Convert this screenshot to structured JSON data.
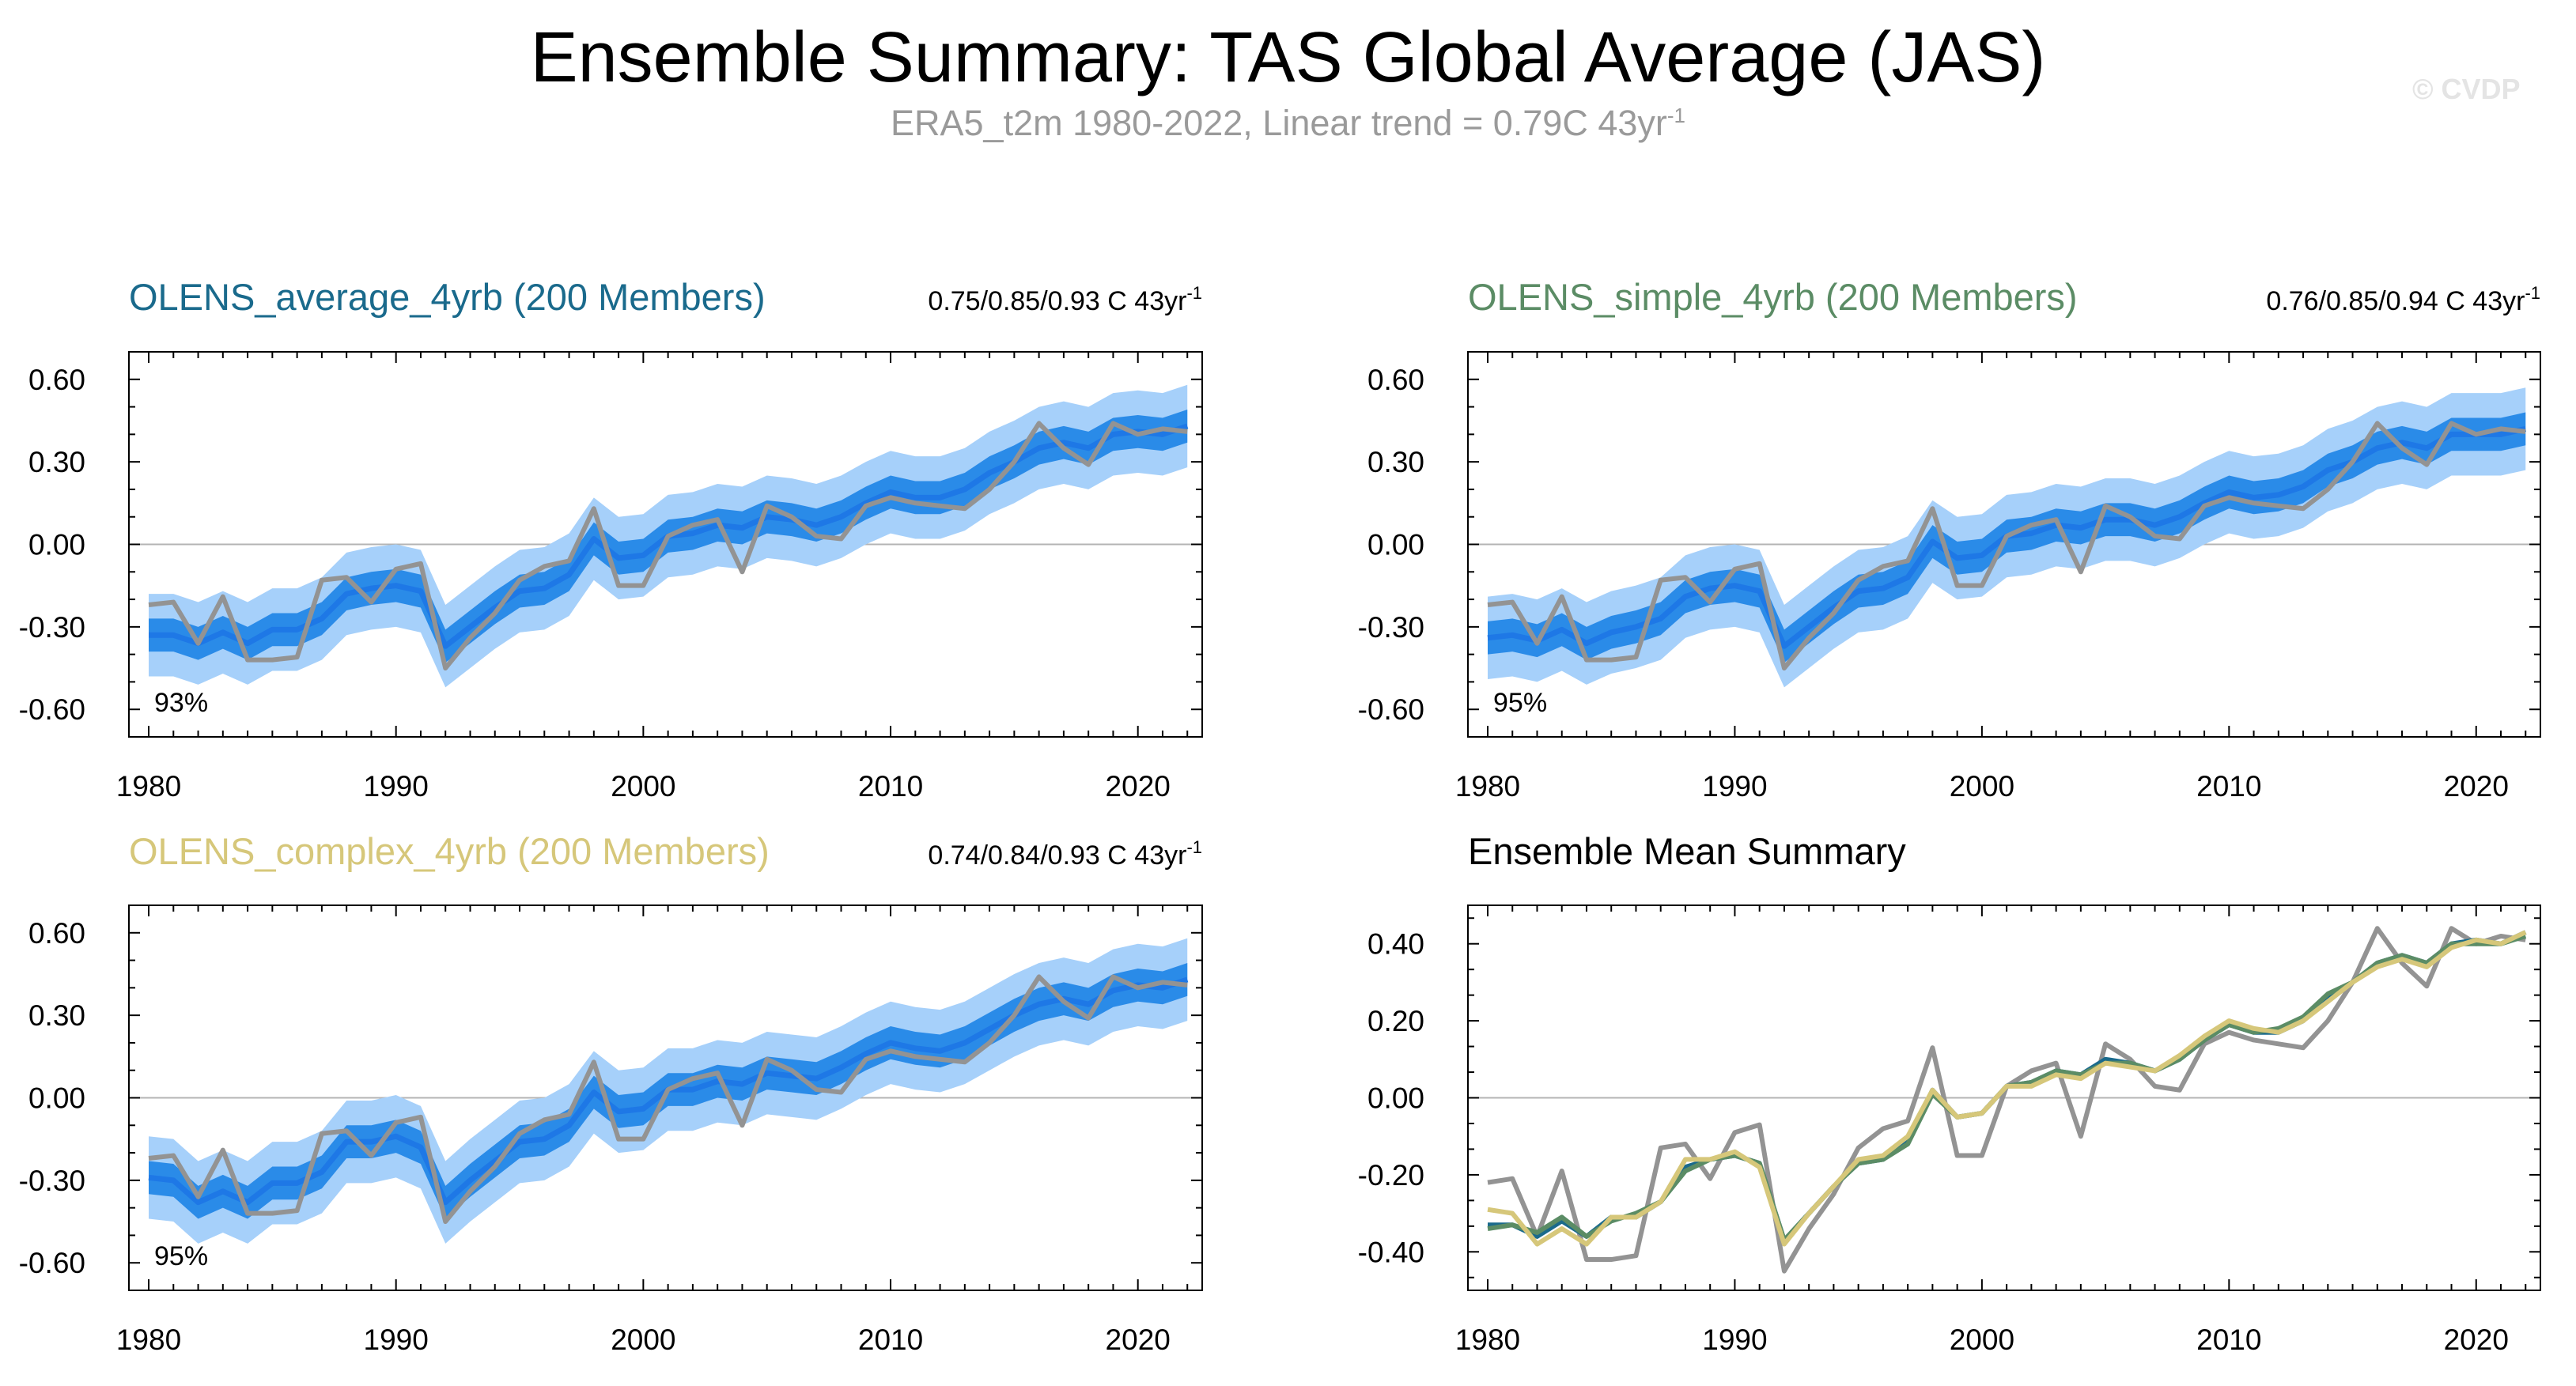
{
  "header": {
    "title": "Ensemble Summary: TAS Global Average (JAS)",
    "subtitle_main": "ERA5_t2m 1980-2022, Linear trend = 0.79C 43yr",
    "subtitle_sup": "-1",
    "watermark": "© CVDP"
  },
  "chart_data": [
    {
      "type": "line",
      "title": "OLENS_average_4yrb (200 Members)",
      "title_color": "#1a6a8c",
      "stat_text": "0.75/0.85/0.93 C 43yr",
      "stat_sup": "-1",
      "percent_label": "93%",
      "ylim": [
        -0.7,
        0.7
      ],
      "yticks": [
        "0.60",
        "0.30",
        "0.00",
        "-0.30",
        "-0.60"
      ],
      "xticks": [
        "1980",
        "1990",
        "2000",
        "2010",
        "2020"
      ],
      "grid": false,
      "x": [
        1980,
        1981,
        1982,
        1983,
        1984,
        1985,
        1986,
        1987,
        1988,
        1989,
        1990,
        1991,
        1992,
        1993,
        1994,
        1995,
        1996,
        1997,
        1998,
        1999,
        2000,
        2001,
        2002,
        2003,
        2004,
        2005,
        2006,
        2007,
        2008,
        2009,
        2010,
        2011,
        2012,
        2013,
        2014,
        2015,
        2016,
        2017,
        2018,
        2019,
        2020,
        2021,
        2022
      ],
      "series": [
        {
          "role": "ensemble_mean",
          "color": "#1e78e6",
          "values": [
            -0.33,
            -0.33,
            -0.36,
            -0.32,
            -0.36,
            -0.31,
            -0.31,
            -0.27,
            -0.18,
            -0.16,
            -0.15,
            -0.17,
            -0.37,
            -0.3,
            -0.23,
            -0.17,
            -0.16,
            -0.11,
            0.02,
            -0.05,
            -0.04,
            0.03,
            0.04,
            0.07,
            0.06,
            0.1,
            0.09,
            0.07,
            0.1,
            0.15,
            0.19,
            0.17,
            0.17,
            0.2,
            0.26,
            0.3,
            0.35,
            0.37,
            0.35,
            0.4,
            0.41,
            0.4,
            0.43
          ]
        },
        {
          "role": "observed",
          "color": "#939393",
          "values": [
            -0.22,
            -0.21,
            -0.36,
            -0.19,
            -0.42,
            -0.42,
            -0.41,
            -0.13,
            -0.12,
            -0.21,
            -0.09,
            -0.07,
            -0.45,
            -0.34,
            -0.25,
            -0.13,
            -0.08,
            -0.06,
            0.13,
            -0.15,
            -0.15,
            0.03,
            0.07,
            0.09,
            -0.1,
            0.14,
            0.1,
            0.03,
            0.02,
            0.14,
            0.17,
            0.15,
            0.14,
            0.13,
            0.2,
            0.3,
            0.44,
            0.35,
            0.29,
            0.44,
            0.4,
            0.42,
            0.41
          ]
        }
      ],
      "band_inner_halfwidth": 0.06,
      "band_outer_halfwidth": 0.15,
      "band_inner_color": "#2a8be8",
      "band_outer_color": "#a6d0fa"
    },
    {
      "type": "line",
      "title": "OLENS_simple_4yrb (200 Members)",
      "title_color": "#5b8c65",
      "stat_text": "0.76/0.85/0.94 C 43yr",
      "stat_sup": "-1",
      "percent_label": "95%",
      "ylim": [
        -0.7,
        0.7
      ],
      "yticks": [
        "0.60",
        "0.30",
        "0.00",
        "-0.30",
        "-0.60"
      ],
      "xticks": [
        "1980",
        "1990",
        "2000",
        "2010",
        "2020"
      ],
      "grid": false,
      "x": [
        1980,
        1981,
        1982,
        1983,
        1984,
        1985,
        1986,
        1987,
        1988,
        1989,
        1990,
        1991,
        1992,
        1993,
        1994,
        1995,
        1996,
        1997,
        1998,
        1999,
        2000,
        2001,
        2002,
        2003,
        2004,
        2005,
        2006,
        2007,
        2008,
        2009,
        2010,
        2011,
        2012,
        2013,
        2014,
        2015,
        2016,
        2017,
        2018,
        2019,
        2020,
        2021,
        2022
      ],
      "series": [
        {
          "role": "ensemble_mean",
          "color": "#1e78e6",
          "values": [
            -0.34,
            -0.33,
            -0.35,
            -0.31,
            -0.36,
            -0.32,
            -0.3,
            -0.27,
            -0.19,
            -0.16,
            -0.15,
            -0.17,
            -0.37,
            -0.3,
            -0.23,
            -0.17,
            -0.16,
            -0.12,
            0.01,
            -0.05,
            -0.04,
            0.03,
            0.04,
            0.07,
            0.06,
            0.09,
            0.09,
            0.07,
            0.1,
            0.15,
            0.19,
            0.17,
            0.18,
            0.21,
            0.27,
            0.3,
            0.35,
            0.37,
            0.35,
            0.4,
            0.4,
            0.4,
            0.42
          ]
        },
        {
          "role": "observed",
          "color": "#939393",
          "values": [
            -0.22,
            -0.21,
            -0.36,
            -0.19,
            -0.42,
            -0.42,
            -0.41,
            -0.13,
            -0.12,
            -0.21,
            -0.09,
            -0.07,
            -0.45,
            -0.34,
            -0.25,
            -0.13,
            -0.08,
            -0.06,
            0.13,
            -0.15,
            -0.15,
            0.03,
            0.07,
            0.09,
            -0.1,
            0.14,
            0.1,
            0.03,
            0.02,
            0.14,
            0.17,
            0.15,
            0.14,
            0.13,
            0.2,
            0.3,
            0.44,
            0.35,
            0.29,
            0.44,
            0.4,
            0.42,
            0.41
          ]
        }
      ],
      "band_inner_halfwidth": 0.06,
      "band_outer_halfwidth": 0.15,
      "band_inner_color": "#2a8be8",
      "band_outer_color": "#a6d0fa"
    },
    {
      "type": "line",
      "title": "OLENS_complex_4yrb (200 Members)",
      "title_color": "#d6c77a",
      "stat_text": "0.74/0.84/0.93 C 43yr",
      "stat_sup": "-1",
      "percent_label": "95%",
      "ylim": [
        -0.7,
        0.7
      ],
      "yticks": [
        "0.60",
        "0.30",
        "0.00",
        "-0.30",
        "-0.60"
      ],
      "xticks": [
        "1980",
        "1990",
        "2000",
        "2010",
        "2020"
      ],
      "grid": false,
      "x": [
        1980,
        1981,
        1982,
        1983,
        1984,
        1985,
        1986,
        1987,
        1988,
        1989,
        1990,
        1991,
        1992,
        1993,
        1994,
        1995,
        1996,
        1997,
        1998,
        1999,
        2000,
        2001,
        2002,
        2003,
        2004,
        2005,
        2006,
        2007,
        2008,
        2009,
        2010,
        2011,
        2012,
        2013,
        2014,
        2015,
        2016,
        2017,
        2018,
        2019,
        2020,
        2021,
        2022
      ],
      "series": [
        {
          "role": "ensemble_mean",
          "color": "#1e78e6",
          "values": [
            -0.29,
            -0.3,
            -0.38,
            -0.34,
            -0.38,
            -0.31,
            -0.31,
            -0.27,
            -0.16,
            -0.16,
            -0.14,
            -0.18,
            -0.38,
            -0.3,
            -0.23,
            -0.16,
            -0.15,
            -0.1,
            0.02,
            -0.05,
            -0.04,
            0.03,
            0.03,
            0.06,
            0.05,
            0.09,
            0.08,
            0.07,
            0.11,
            0.16,
            0.2,
            0.18,
            0.17,
            0.2,
            0.25,
            0.3,
            0.34,
            0.36,
            0.34,
            0.39,
            0.41,
            0.4,
            0.43
          ]
        },
        {
          "role": "observed",
          "color": "#939393",
          "values": [
            -0.22,
            -0.21,
            -0.36,
            -0.19,
            -0.42,
            -0.42,
            -0.41,
            -0.13,
            -0.12,
            -0.21,
            -0.09,
            -0.07,
            -0.45,
            -0.34,
            -0.25,
            -0.13,
            -0.08,
            -0.06,
            0.13,
            -0.15,
            -0.15,
            0.03,
            0.07,
            0.09,
            -0.1,
            0.14,
            0.1,
            0.03,
            0.02,
            0.14,
            0.17,
            0.15,
            0.14,
            0.13,
            0.2,
            0.3,
            0.44,
            0.35,
            0.29,
            0.44,
            0.4,
            0.42,
            0.41
          ]
        }
      ],
      "band_inner_halfwidth": 0.06,
      "band_outer_halfwidth": 0.15,
      "band_inner_color": "#2a8be8",
      "band_outer_color": "#a6d0fa"
    },
    {
      "type": "line",
      "title": "Ensemble Mean Summary",
      "title_color": "#000000",
      "ylim": [
        -0.5,
        0.5
      ],
      "yticks": [
        "0.40",
        "0.20",
        "0.00",
        "-0.20",
        "-0.40"
      ],
      "xticks": [
        "1980",
        "1990",
        "2000",
        "2010",
        "2020"
      ],
      "grid": false,
      "x": [
        1980,
        1981,
        1982,
        1983,
        1984,
        1985,
        1986,
        1987,
        1988,
        1989,
        1990,
        1991,
        1992,
        1993,
        1994,
        1995,
        1996,
        1997,
        1998,
        1999,
        2000,
        2001,
        2002,
        2003,
        2004,
        2005,
        2006,
        2007,
        2008,
        2009,
        2010,
        2011,
        2012,
        2013,
        2014,
        2015,
        2016,
        2017,
        2018,
        2019,
        2020,
        2021,
        2022
      ],
      "series": [
        {
          "role": "observed",
          "color": "#939393",
          "values": [
            -0.22,
            -0.21,
            -0.36,
            -0.19,
            -0.42,
            -0.42,
            -0.41,
            -0.13,
            -0.12,
            -0.21,
            -0.09,
            -0.07,
            -0.45,
            -0.34,
            -0.25,
            -0.13,
            -0.08,
            -0.06,
            0.13,
            -0.15,
            -0.15,
            0.03,
            0.07,
            0.09,
            -0.1,
            0.14,
            0.1,
            0.03,
            0.02,
            0.14,
            0.17,
            0.15,
            0.14,
            0.13,
            0.2,
            0.3,
            0.44,
            0.35,
            0.29,
            0.44,
            0.4,
            0.42,
            0.41
          ]
        },
        {
          "role": "OLENS_average_4yrb",
          "color": "#1a6a8c",
          "values": [
            -0.33,
            -0.33,
            -0.36,
            -0.32,
            -0.36,
            -0.31,
            -0.31,
            -0.27,
            -0.18,
            -0.16,
            -0.15,
            -0.17,
            -0.37,
            -0.3,
            -0.23,
            -0.17,
            -0.16,
            -0.11,
            0.02,
            -0.05,
            -0.04,
            0.03,
            0.04,
            0.07,
            0.06,
            0.1,
            0.09,
            0.07,
            0.1,
            0.15,
            0.19,
            0.17,
            0.17,
            0.2,
            0.26,
            0.3,
            0.35,
            0.37,
            0.35,
            0.4,
            0.41,
            0.4,
            0.43
          ]
        },
        {
          "role": "OLENS_simple_4yrb",
          "color": "#5b8c65",
          "values": [
            -0.34,
            -0.33,
            -0.35,
            -0.31,
            -0.36,
            -0.32,
            -0.3,
            -0.27,
            -0.19,
            -0.16,
            -0.15,
            -0.17,
            -0.37,
            -0.3,
            -0.23,
            -0.17,
            -0.16,
            -0.12,
            0.01,
            -0.05,
            -0.04,
            0.03,
            0.04,
            0.07,
            0.06,
            0.09,
            0.09,
            0.07,
            0.1,
            0.15,
            0.19,
            0.17,
            0.18,
            0.21,
            0.27,
            0.3,
            0.35,
            0.37,
            0.35,
            0.4,
            0.4,
            0.4,
            0.42
          ]
        },
        {
          "role": "OLENS_complex_4yrb",
          "color": "#d6c77a",
          "values": [
            -0.29,
            -0.3,
            -0.38,
            -0.34,
            -0.38,
            -0.31,
            -0.31,
            -0.27,
            -0.16,
            -0.16,
            -0.14,
            -0.18,
            -0.38,
            -0.3,
            -0.23,
            -0.16,
            -0.15,
            -0.1,
            0.02,
            -0.05,
            -0.04,
            0.03,
            0.03,
            0.06,
            0.05,
            0.09,
            0.08,
            0.07,
            0.11,
            0.16,
            0.2,
            0.18,
            0.17,
            0.2,
            0.25,
            0.3,
            0.34,
            0.36,
            0.34,
            0.39,
            0.41,
            0.4,
            0.43
          ]
        }
      ]
    }
  ]
}
